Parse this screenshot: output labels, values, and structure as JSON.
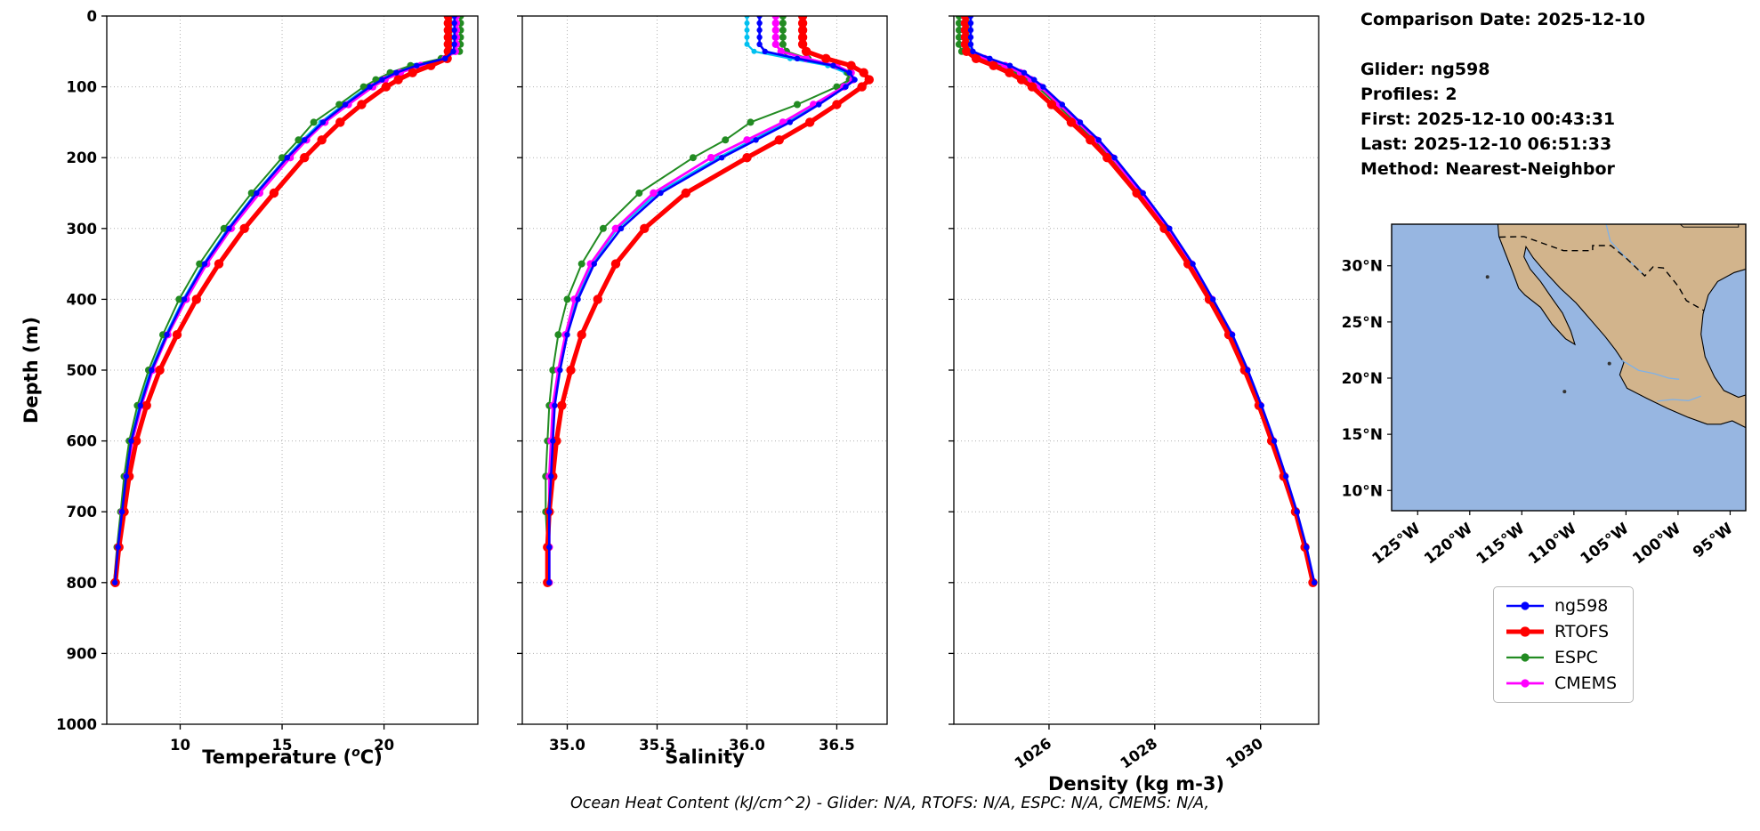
{
  "info": {
    "lines": [
      "Comparison Date: 2025-12-10",
      "",
      "Glider: ng598",
      "Profiles: 2",
      "First: 2025-12-10 00:43:31",
      "Last: 2025-12-10 06:51:33",
      "Method: Nearest-Neighbor"
    ]
  },
  "footer": {
    "text": "Ocean Heat Content (kJ/cm^2) - Glider: N/A,  RTOFS: N/A,  ESPC: N/A,  CMEMS: N/A,"
  },
  "chart_data": {
    "type": "line",
    "orientation": "vertical-profile",
    "ylabel": "Depth (m)",
    "ylim": [
      0,
      1000
    ],
    "yticks": [
      0,
      100,
      200,
      300,
      400,
      500,
      600,
      700,
      800,
      900,
      1000
    ],
    "grid": "dotted",
    "depths_m": [
      0,
      10,
      20,
      30,
      40,
      50,
      60,
      70,
      80,
      90,
      100,
      125,
      150,
      175,
      200,
      250,
      300,
      350,
      400,
      450,
      500,
      550,
      600,
      650,
      700,
      750,
      800
    ],
    "panels": [
      {
        "id": "temperature",
        "xlabel_parts": {
          "pre": "Temperature (",
          "sup": "o",
          "post": "C)"
        },
        "xlim": [
          6.4,
          24.6
        ],
        "xticks": [
          10,
          15,
          20
        ],
        "xtick_labels": [
          "10",
          "15",
          "20"
        ],
        "series": [
          {
            "name": "ng598-profile2",
            "color": "#00c0f0",
            "lw": 2.2,
            "ms": 3.0,
            "in_legend": false,
            "values": [
              23.3,
              23.3,
              23.3,
              23.3,
              23.3,
              23.27,
              22.9,
              21.5,
              20.5,
              19.8,
              19.2,
              18.0,
              16.9,
              16.0,
              15.2,
              13.7,
              12.35,
              11.15,
              10.15,
              9.3,
              8.55,
              8.0,
              7.58,
              7.33,
              7.13,
              6.93,
              6.8
            ]
          },
          {
            "name": "ESPC",
            "color": "#228b22",
            "lw": 2.0,
            "ms": 4.0,
            "in_legend": true,
            "values": [
              23.75,
              23.75,
              23.75,
              23.75,
              23.74,
              23.7,
              22.8,
              21.3,
              20.3,
              19.6,
              19.0,
              17.8,
              16.55,
              15.8,
              15.0,
              13.5,
              12.15,
              10.95,
              9.95,
              9.15,
              8.45,
              7.9,
              7.5,
              7.25,
              7.08,
              6.9,
              6.75
            ]
          },
          {
            "name": "CMEMS",
            "color": "#ff00ff",
            "lw": 2.8,
            "ms": 4.2,
            "in_legend": true,
            "values": [
              23.55,
              23.55,
              23.55,
              23.55,
              23.55,
              23.5,
              23.0,
              21.8,
              20.8,
              20.05,
              19.45,
              18.25,
              17.1,
              16.2,
              15.4,
              13.9,
              12.5,
              11.3,
              10.3,
              9.4,
              8.65,
              8.1,
              7.65,
              7.38,
              7.17,
              6.96,
              6.82
            ]
          },
          {
            "name": "RTOFS",
            "color": "#ff0000",
            "lw": 5.2,
            "ms": 5.2,
            "in_legend": true,
            "values": [
              23.15,
              23.15,
              23.15,
              23.15,
              23.15,
              23.15,
              23.1,
              22.3,
              21.4,
              20.7,
              20.1,
              18.9,
              17.85,
              16.95,
              16.1,
              14.6,
              13.15,
              11.9,
              10.8,
              9.85,
              9.0,
              8.35,
              7.85,
              7.5,
              7.25,
              7.0,
              6.82
            ]
          },
          {
            "name": "ng598",
            "color": "#0000ff",
            "lw": 2.6,
            "ms": 3.2,
            "in_legend": true,
            "values": [
              23.45,
              23.45,
              23.45,
              23.45,
              23.45,
              23.4,
              23.0,
              21.6,
              20.6,
              19.9,
              19.3,
              18.1,
              17.0,
              16.1,
              15.25,
              13.75,
              12.4,
              11.2,
              10.2,
              9.35,
              8.6,
              8.05,
              7.6,
              7.35,
              7.15,
              6.95,
              6.8
            ]
          }
        ]
      },
      {
        "id": "salinity",
        "xlabel": "Salinity",
        "xlim": [
          34.75,
          36.78
        ],
        "xticks": [
          35.0,
          35.5,
          36.0,
          36.5
        ],
        "xtick_labels": [
          "35.0",
          "35.5",
          "36.0",
          "36.5"
        ],
        "series": [
          {
            "name": "ng598-profile2",
            "color": "#00c0f0",
            "lw": 2.2,
            "ms": 3.0,
            "in_legend": false,
            "values": [
              36.0,
              36.0,
              36.0,
              36.0,
              36.0,
              36.04,
              36.24,
              36.45,
              36.55,
              36.58,
              36.53,
              36.38,
              36.22,
              36.03,
              35.84,
              35.5,
              35.28,
              35.14,
              35.05,
              34.99,
              34.95,
              34.92,
              34.91,
              34.9,
              34.9,
              34.9,
              34.9
            ]
          },
          {
            "name": "ESPC",
            "color": "#228b22",
            "lw": 2.0,
            "ms": 4.0,
            "in_legend": true,
            "values": [
              36.2,
              36.2,
              36.2,
              36.2,
              36.2,
              36.22,
              36.34,
              36.5,
              36.56,
              36.57,
              36.5,
              36.28,
              36.02,
              35.88,
              35.7,
              35.4,
              35.2,
              35.08,
              35.0,
              34.95,
              34.92,
              34.9,
              34.89,
              34.88,
              34.88,
              34.89,
              34.9
            ]
          },
          {
            "name": "CMEMS",
            "color": "#ff00ff",
            "lw": 2.8,
            "ms": 4.2,
            "in_legend": true,
            "values": [
              36.16,
              36.16,
              36.16,
              36.16,
              36.16,
              36.19,
              36.33,
              36.5,
              36.58,
              36.59,
              36.54,
              36.37,
              36.2,
              36.0,
              35.8,
              35.48,
              35.27,
              35.13,
              35.04,
              34.99,
              34.95,
              34.92,
              34.91,
              34.9,
              34.9,
              34.9,
              34.9
            ]
          },
          {
            "name": "RTOFS",
            "color": "#ff0000",
            "lw": 5.2,
            "ms": 5.2,
            "in_legend": true,
            "values": [
              36.31,
              36.31,
              36.31,
              36.31,
              36.31,
              36.33,
              36.44,
              36.58,
              36.65,
              36.68,
              36.64,
              36.5,
              36.35,
              36.18,
              36.0,
              35.66,
              35.43,
              35.27,
              35.17,
              35.08,
              35.02,
              34.97,
              34.94,
              34.92,
              34.9,
              34.89,
              34.89
            ]
          },
          {
            "name": "ng598",
            "color": "#0000ff",
            "lw": 2.6,
            "ms": 3.2,
            "in_legend": true,
            "values": [
              36.07,
              36.07,
              36.07,
              36.07,
              36.07,
              36.1,
              36.28,
              36.48,
              36.57,
              36.6,
              36.55,
              36.4,
              36.24,
              36.05,
              35.86,
              35.52,
              35.3,
              35.15,
              35.06,
              35.0,
              34.96,
              34.93,
              34.92,
              34.91,
              34.9,
              34.9,
              34.9
            ]
          }
        ]
      },
      {
        "id": "density",
        "xlabel": "Density (kg m-3)",
        "xlim": [
          1024.2,
          1031.1
        ],
        "xticks": [
          1026,
          1028,
          1030
        ],
        "xtick_labels": [
          "1026",
          "1028",
          "1030"
        ],
        "rotate_xticks": true,
        "series": [
          {
            "name": "ng598-profile2",
            "color": "#00c0f0",
            "lw": 2.2,
            "ms": 3.0,
            "in_legend": false,
            "values": [
              1024.48,
              1024.48,
              1024.48,
              1024.48,
              1024.48,
              1024.52,
              1024.84,
              1025.22,
              1025.5,
              1025.7,
              1025.87,
              1026.23,
              1026.57,
              1026.92,
              1027.22,
              1027.76,
              1028.26,
              1028.7,
              1029.09,
              1029.46,
              1029.75,
              1030.01,
              1030.25,
              1030.47,
              1030.68,
              1030.86,
              1031.01
            ]
          },
          {
            "name": "ESPC",
            "color": "#228b22",
            "lw": 2.0,
            "ms": 4.0,
            "in_legend": true,
            "values": [
              1024.3,
              1024.3,
              1024.3,
              1024.3,
              1024.3,
              1024.35,
              1024.7,
              1025.1,
              1025.4,
              1025.6,
              1025.78,
              1026.15,
              1026.5,
              1026.85,
              1027.15,
              1027.7,
              1028.2,
              1028.65,
              1029.05,
              1029.42,
              1029.72,
              1029.98,
              1030.22,
              1030.45,
              1030.66,
              1030.84,
              1030.99
            ]
          },
          {
            "name": "CMEMS",
            "color": "#ff00ff",
            "lw": 2.8,
            "ms": 4.2,
            "in_legend": true,
            "values": [
              1024.4,
              1024.4,
              1024.4,
              1024.4,
              1024.4,
              1024.45,
              1024.78,
              1025.17,
              1025.46,
              1025.66,
              1025.84,
              1026.2,
              1026.55,
              1026.9,
              1027.2,
              1027.74,
              1028.24,
              1028.69,
              1029.08,
              1029.45,
              1029.74,
              1030.0,
              1030.24,
              1030.46,
              1030.67,
              1030.85,
              1031.0
            ]
          },
          {
            "name": "RTOFS",
            "color": "#ff0000",
            "lw": 5.2,
            "ms": 5.2,
            "in_legend": true,
            "values": [
              1024.42,
              1024.42,
              1024.42,
              1024.42,
              1024.42,
              1024.44,
              1024.62,
              1024.95,
              1025.25,
              1025.48,
              1025.68,
              1026.05,
              1026.42,
              1026.78,
              1027.1,
              1027.66,
              1028.18,
              1028.63,
              1029.03,
              1029.4,
              1029.7,
              1029.97,
              1030.21,
              1030.44,
              1030.66,
              1030.84,
              1030.99
            ]
          },
          {
            "name": "ng598",
            "color": "#0000ff",
            "lw": 2.6,
            "ms": 3.2,
            "in_legend": true,
            "values": [
              1024.52,
              1024.52,
              1024.52,
              1024.52,
              1024.52,
              1024.56,
              1024.88,
              1025.26,
              1025.53,
              1025.72,
              1025.89,
              1026.25,
              1026.59,
              1026.94,
              1027.24,
              1027.78,
              1028.28,
              1028.72,
              1029.1,
              1029.47,
              1029.76,
              1030.02,
              1030.26,
              1030.48,
              1030.69,
              1030.87,
              1031.02
            ]
          }
        ]
      }
    ],
    "legend": [
      {
        "label": "ng598",
        "color": "#0000ff",
        "lw": 2.6,
        "ms": 4.6
      },
      {
        "label": "RTOFS",
        "color": "#ff0000",
        "lw": 5.0,
        "ms": 5.6
      },
      {
        "label": "ESPC",
        "color": "#228b22",
        "lw": 2.2,
        "ms": 4.6
      },
      {
        "label": "CMEMS",
        "color": "#ff00ff",
        "lw": 2.8,
        "ms": 4.6
      }
    ],
    "legend_position": "below-map-right"
  },
  "map": {
    "extent": {
      "lon_min": -127.5,
      "lon_max": -93.5,
      "lat_min": 8.2,
      "lat_max": 33.7
    },
    "lat_ticks": [
      {
        "v": 30,
        "label": "30°N"
      },
      {
        "v": 25,
        "label": "25°N"
      },
      {
        "v": 20,
        "label": "20°N"
      },
      {
        "v": 15,
        "label": "15°N"
      },
      {
        "v": 10,
        "label": "10°N"
      }
    ],
    "lon_ticks": [
      {
        "v": -125,
        "label": "125°W"
      },
      {
        "v": -120,
        "label": "120°W"
      },
      {
        "v": -115,
        "label": "115°W"
      },
      {
        "v": -110,
        "label": "110°W"
      },
      {
        "v": -105,
        "label": "105°W"
      },
      {
        "v": -100,
        "label": "100°W"
      },
      {
        "v": -95,
        "label": "95°W"
      }
    ],
    "colors": {
      "ocean": "#97b6e1",
      "land": "#d2b48c",
      "coast": "#000000",
      "river": "#7eb1e8",
      "border": "#000000"
    },
    "land_polygon": [
      [
        -117.3,
        33.7
      ],
      [
        -93.5,
        33.7
      ],
      [
        -93.5,
        29.7
      ],
      [
        -94.6,
        29.4
      ],
      [
        -96.2,
        28.6
      ],
      [
        -97.1,
        27.4
      ],
      [
        -97.6,
        25.7
      ],
      [
        -97.8,
        23.9
      ],
      [
        -97.4,
        21.9
      ],
      [
        -96.5,
        20.1
      ],
      [
        -95.6,
        18.9
      ],
      [
        -94.2,
        18.3
      ],
      [
        -93.5,
        18.5
      ],
      [
        -93.5,
        15.6
      ],
      [
        -94.8,
        16.2
      ],
      [
        -95.9,
        15.9
      ],
      [
        -97.2,
        15.9
      ],
      [
        -99.0,
        16.5
      ],
      [
        -101.0,
        17.3
      ],
      [
        -103.0,
        18.2
      ],
      [
        -104.9,
        19.1
      ],
      [
        -105.6,
        20.3
      ],
      [
        -105.2,
        21.4
      ],
      [
        -106.0,
        22.5
      ],
      [
        -107.0,
        23.7
      ],
      [
        -108.4,
        25.2
      ],
      [
        -109.8,
        26.7
      ],
      [
        -111.3,
        28.0
      ],
      [
        -112.7,
        29.4
      ],
      [
        -113.9,
        30.7
      ],
      [
        -114.6,
        31.7
      ],
      [
        -114.8,
        30.8
      ],
      [
        -114.2,
        29.7
      ],
      [
        -113.2,
        28.6
      ],
      [
        -112.1,
        27.1
      ],
      [
        -111.1,
        25.8
      ],
      [
        -110.3,
        24.2
      ],
      [
        -109.9,
        23.0
      ],
      [
        -110.8,
        23.5
      ],
      [
        -112.1,
        24.8
      ],
      [
        -113.2,
        26.3
      ],
      [
        -114.7,
        27.4
      ],
      [
        -115.3,
        28.0
      ],
      [
        -115.9,
        29.5
      ],
      [
        -116.7,
        31.4
      ],
      [
        -117.2,
        32.6
      ]
    ],
    "border_dashed": [
      [
        -117.15,
        32.55
      ],
      [
        -114.8,
        32.6
      ],
      [
        -111.0,
        31.35
      ],
      [
        -108.2,
        31.35
      ],
      [
        -108.2,
        31.8
      ],
      [
        -106.45,
        31.8
      ],
      [
        -104.9,
        30.6
      ],
      [
        -103.2,
        29.1
      ],
      [
        -102.4,
        29.9
      ],
      [
        -101.4,
        29.8
      ],
      [
        -100.0,
        28.2
      ],
      [
        -99.2,
        26.9
      ],
      [
        -97.5,
        26.0
      ]
    ],
    "state_border": [
      [
        -99.8,
        33.7
      ],
      [
        -99.5,
        33.45
      ],
      [
        -94.2,
        33.45
      ],
      [
        -94.2,
        33.7
      ]
    ],
    "rivers": [
      [
        [
          -106.9,
          33.7
        ],
        [
          -106.5,
          32.2
        ],
        [
          -105.2,
          30.9
        ],
        [
          -103.3,
          29.2
        ]
      ],
      [
        [
          -105.4,
          21.6
        ],
        [
          -103.8,
          20.7
        ],
        [
          -102.3,
          20.4
        ],
        [
          -100.9,
          20.0
        ],
        [
          -99.9,
          19.9
        ]
      ],
      [
        [
          -102.0,
          17.95
        ],
        [
          -100.5,
          18.1
        ],
        [
          -99.0,
          18.0
        ],
        [
          -97.8,
          18.4
        ]
      ]
    ],
    "islands": [
      [
        -118.3,
        29.0
      ],
      [
        -110.9,
        18.8
      ],
      [
        -106.6,
        21.3
      ]
    ]
  }
}
